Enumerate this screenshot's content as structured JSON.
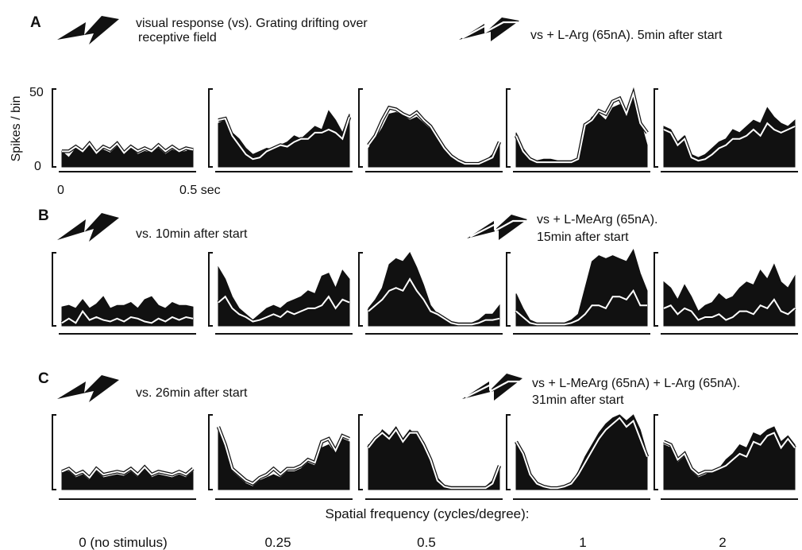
{
  "figure": {
    "rows": [
      {
        "letter": "A",
        "legend_control": [
          "visual response (vs). Grating drifting over",
          "receptive field"
        ],
        "legend_drug": [
          "vs + L-Arg (65nA). 5min after start"
        ]
      },
      {
        "letter": "B",
        "legend_control": [
          "vs. 10min after start"
        ],
        "legend_drug": [
          "vs + L-MeArg (65nA).",
          "15min after start"
        ]
      },
      {
        "letter": "C",
        "legend_control": [
          "vs. 26min after start"
        ],
        "legend_drug": [
          "vs + L-MeArg (65nA) + L-Arg (65nA).",
          "31min after start"
        ]
      }
    ],
    "ylabel": "Spikes / bin",
    "ytick_top": "50",
    "ytick_bottom": "0",
    "xtick_left": "0",
    "xtick_right": "0.5 sec",
    "xaxis_title": "Spatial frequency (cycles/degree):",
    "columns": [
      "0 (no stimulus)",
      "0.25",
      "0.5",
      "1",
      "2"
    ]
  },
  "chart_data": {
    "type": "area",
    "title": "",
    "xlabel": "Spatial frequency (cycles/degree):",
    "ylabel": "Spikes / bin",
    "ylim": [
      0,
      50
    ],
    "xlim_sec": [
      0,
      0.5
    ],
    "bins": 20,
    "legend": [
      "filled: control visual response (vs)",
      "white outline: vs + drug"
    ],
    "panels": [
      {
        "row": "A",
        "column": "0 (no stimulus)",
        "filled": [
          10,
          6,
          12,
          9,
          14,
          8,
          11,
          9,
          13,
          8,
          12,
          8,
          10,
          9,
          12,
          8,
          11,
          9,
          10,
          12
        ],
        "line": [
          10,
          10,
          13,
          10,
          15,
          9,
          13,
          11,
          15,
          9,
          13,
          10,
          12,
          10,
          14,
          10,
          13,
          10,
          12,
          11
        ]
      },
      {
        "row": "A",
        "column": "0.25",
        "filled": [
          28,
          30,
          22,
          18,
          12,
          8,
          10,
          12,
          11,
          14,
          16,
          20,
          18,
          22,
          26,
          24,
          36,
          30,
          22,
          34
        ],
        "line": [
          30,
          31,
          20,
          14,
          8,
          5,
          6,
          10,
          12,
          14,
          13,
          16,
          18,
          18,
          22,
          22,
          24,
          22,
          18,
          32
        ]
      },
      {
        "row": "A",
        "column": "0.5",
        "filled": [
          12,
          18,
          25,
          34,
          35,
          33,
          30,
          32,
          28,
          24,
          18,
          12,
          8,
          5,
          3,
          2,
          2,
          4,
          8,
          14
        ],
        "line": [
          14,
          20,
          30,
          38,
          37,
          34,
          32,
          35,
          30,
          26,
          19,
          12,
          7,
          4,
          2,
          2,
          2,
          4,
          6,
          16
        ]
      },
      {
        "row": "A",
        "column": "1",
        "filled": [
          22,
          12,
          6,
          4,
          5,
          5,
          4,
          4,
          4,
          5,
          25,
          32,
          34,
          30,
          38,
          40,
          36,
          48,
          30,
          14
        ],
        "line": [
          20,
          10,
          5,
          3,
          3,
          3,
          3,
          3,
          3,
          5,
          27,
          30,
          36,
          34,
          42,
          44,
          34,
          47,
          28,
          22
        ]
      },
      {
        "row": "A",
        "column": "2",
        "filled": [
          26,
          24,
          16,
          20,
          8,
          6,
          8,
          12,
          16,
          18,
          24,
          22,
          26,
          30,
          28,
          38,
          32,
          28,
          26,
          30
        ],
        "line": [
          24,
          22,
          14,
          18,
          6,
          4,
          5,
          8,
          12,
          14,
          18,
          18,
          20,
          24,
          20,
          28,
          24,
          22,
          24,
          26
        ]
      },
      {
        "row": "B",
        "column": "0 (no stimulus)",
        "filled": [
          13,
          14,
          12,
          18,
          12,
          15,
          20,
          12,
          14,
          14,
          16,
          12,
          18,
          20,
          14,
          12,
          16,
          14,
          14,
          13
        ],
        "line": [
          2,
          5,
          2,
          10,
          4,
          6,
          4,
          3,
          5,
          3,
          6,
          5,
          3,
          2,
          5,
          3,
          6,
          4,
          6,
          5
        ]
      },
      {
        "row": "B",
        "column": "0.25",
        "filled": [
          40,
          32,
          20,
          12,
          8,
          4,
          8,
          12,
          14,
          12,
          16,
          18,
          20,
          24,
          22,
          34,
          36,
          26,
          38,
          32
        ],
        "line": [
          16,
          20,
          12,
          8,
          6,
          3,
          4,
          6,
          8,
          6,
          10,
          8,
          10,
          12,
          12,
          14,
          20,
          12,
          18,
          16
        ]
      },
      {
        "row": "B",
        "column": "0.5",
        "filled": [
          12,
          18,
          26,
          42,
          46,
          44,
          50,
          40,
          28,
          14,
          8,
          5,
          3,
          2,
          2,
          2,
          4,
          8,
          8,
          14
        ],
        "line": [
          10,
          14,
          18,
          24,
          26,
          24,
          32,
          24,
          18,
          10,
          8,
          5,
          2,
          1,
          1,
          1,
          2,
          4,
          4,
          5
        ]
      },
      {
        "row": "B",
        "column": "1",
        "filled": [
          22,
          12,
          4,
          2,
          2,
          2,
          2,
          2,
          4,
          8,
          26,
          44,
          48,
          46,
          48,
          46,
          44,
          52,
          36,
          24
        ],
        "line": [
          10,
          6,
          2,
          1,
          1,
          1,
          1,
          1,
          2,
          4,
          8,
          14,
          14,
          12,
          20,
          20,
          18,
          24,
          14,
          14
        ]
      },
      {
        "row": "B",
        "column": "2",
        "filled": [
          30,
          26,
          18,
          28,
          20,
          10,
          14,
          16,
          22,
          18,
          20,
          26,
          30,
          28,
          38,
          32,
          42,
          30,
          26,
          34
        ],
        "line": [
          12,
          14,
          8,
          12,
          10,
          4,
          6,
          6,
          8,
          4,
          6,
          10,
          10,
          8,
          14,
          12,
          18,
          10,
          8,
          12
        ]
      },
      {
        "row": "C",
        "column": "0 (no stimulus)",
        "filled": [
          12,
          12,
          8,
          10,
          6,
          12,
          8,
          9,
          10,
          9,
          12,
          8,
          14,
          8,
          10,
          9,
          8,
          10,
          8,
          12
        ],
        "line": [
          12,
          14,
          10,
          12,
          8,
          14,
          10,
          11,
          12,
          11,
          14,
          10,
          15,
          10,
          12,
          11,
          10,
          12,
          10,
          14
        ]
      },
      {
        "row": "C",
        "column": "0.25",
        "filled": [
          40,
          28,
          12,
          8,
          4,
          2,
          6,
          8,
          10,
          8,
          12,
          12,
          14,
          18,
          16,
          28,
          30,
          24,
          34,
          32
        ],
        "line": [
          42,
          30,
          14,
          10,
          6,
          4,
          8,
          10,
          14,
          10,
          14,
          14,
          16,
          20,
          18,
          32,
          34,
          26,
          36,
          34
        ]
      },
      {
        "row": "C",
        "column": "0.5",
        "filled": [
          30,
          32,
          40,
          36,
          42,
          34,
          40,
          36,
          32,
          22,
          8,
          3,
          2,
          2,
          2,
          2,
          2,
          2,
          6,
          14
        ],
        "line": [
          28,
          34,
          38,
          34,
          40,
          32,
          38,
          38,
          30,
          20,
          6,
          2,
          1,
          1,
          1,
          1,
          1,
          1,
          4,
          16
        ]
      },
      {
        "row": "C",
        "column": "1",
        "filled": [
          30,
          22,
          8,
          4,
          2,
          1,
          1,
          2,
          4,
          12,
          22,
          30,
          38,
          44,
          48,
          50,
          46,
          50,
          40,
          24
        ],
        "line": [
          32,
          24,
          10,
          4,
          2,
          1,
          1,
          2,
          4,
          10,
          18,
          26,
          34,
          40,
          44,
          48,
          42,
          46,
          34,
          22
        ]
      },
      {
        "row": "C",
        "column": "2",
        "filled": [
          30,
          28,
          18,
          22,
          12,
          8,
          10,
          12,
          14,
          20,
          24,
          30,
          28,
          38,
          36,
          40,
          42,
          32,
          36,
          30
        ],
        "line": [
          32,
          30,
          20,
          24,
          14,
          10,
          12,
          12,
          14,
          16,
          20,
          24,
          22,
          32,
          30,
          36,
          38,
          28,
          34,
          28
        ]
      }
    ]
  }
}
